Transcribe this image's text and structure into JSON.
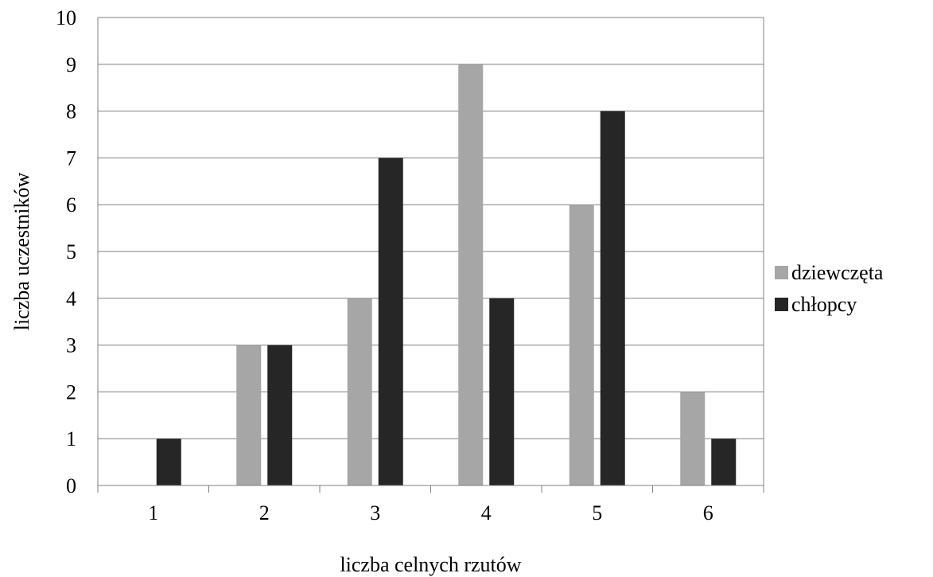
{
  "chart_data": {
    "type": "bar",
    "categories": [
      "1",
      "2",
      "3",
      "4",
      "5",
      "6"
    ],
    "series": [
      {
        "name": "dziewczęta",
        "values": [
          0,
          3,
          4,
          9,
          6,
          2
        ],
        "color": "#a6a6a6"
      },
      {
        "name": "chłopcy",
        "values": [
          1,
          3,
          7,
          4,
          8,
          1
        ],
        "color": "#262626"
      }
    ],
    "xlabel": "liczba celnych rzutów",
    "ylabel": "liczba uczestników",
    "ylim": [
      0,
      10
    ],
    "yticks": [
      "0",
      "1",
      "2",
      "3",
      "4",
      "5",
      "6",
      "7",
      "8",
      "9",
      "10"
    ],
    "grid": true,
    "legend_position": "right"
  }
}
